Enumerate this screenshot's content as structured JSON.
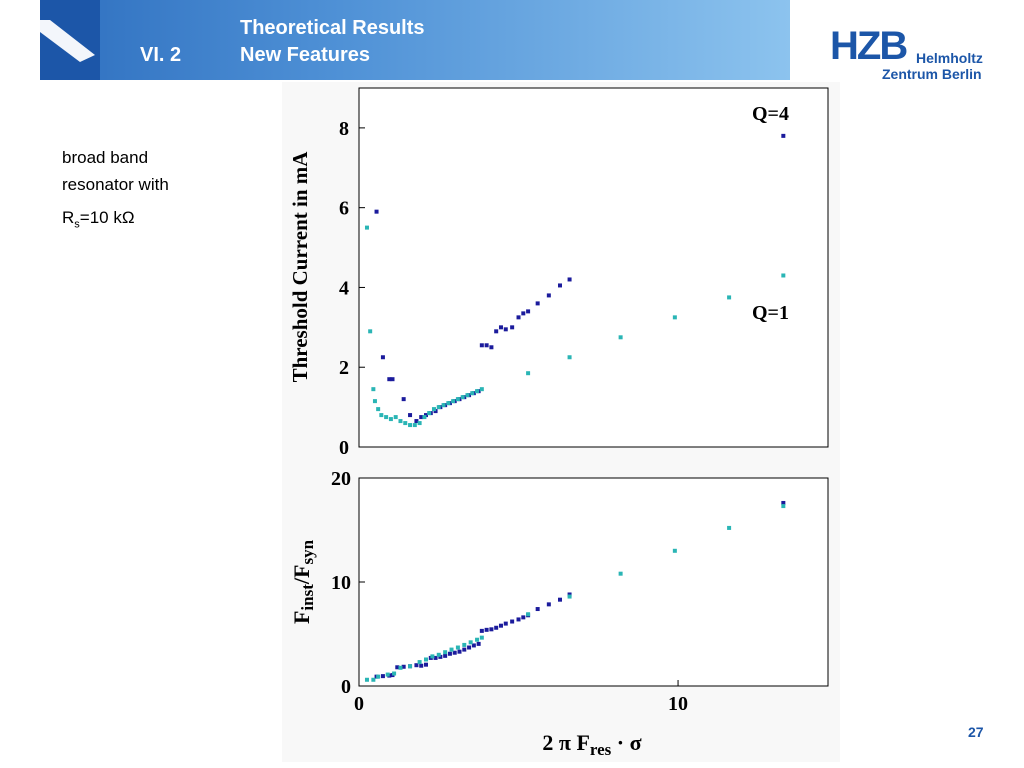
{
  "header": {
    "section": "VI.  2",
    "title_line1": "Theoretical Results",
    "title_line2": "New Features"
  },
  "logo": {
    "mark": "HZB",
    "line1": "Helmholtz",
    "line2": "Zentrum Berlin"
  },
  "side_text": {
    "line1": "broad band",
    "line2": "resonator with",
    "rs_main": "R",
    "rs_sub": "s",
    "rs_rest": "=10 kΩ"
  },
  "page_number": "27",
  "colors": {
    "q4": "#1b1b9c",
    "q1": "#2ab5b5",
    "header_dark": "#1c56a8"
  },
  "chart_data": [
    {
      "type": "scatter",
      "title": "",
      "xlabel": "2 π  F_res · σ",
      "ylabel": "Threshold Current in mA",
      "xlim": [
        0,
        14.7
      ],
      "ylim": [
        0,
        9
      ],
      "y_ticks": [
        "0",
        "2",
        "4",
        "6",
        "8"
      ],
      "annotations": [
        "Q=4",
        "Q=1"
      ],
      "series": [
        {
          "name": "Q=4",
          "points": [
            [
              0.55,
              5.9
            ],
            [
              0.75,
              2.25
            ],
            [
              0.95,
              1.7
            ],
            [
              1.05,
              1.7
            ],
            [
              1.4,
              1.2
            ],
            [
              1.6,
              0.8
            ],
            [
              1.8,
              0.65
            ],
            [
              1.95,
              0.75
            ],
            [
              2.1,
              0.8
            ],
            [
              2.25,
              0.85
            ],
            [
              2.4,
              0.9
            ],
            [
              2.55,
              1.0
            ],
            [
              2.7,
              1.05
            ],
            [
              2.85,
              1.1
            ],
            [
              3.0,
              1.15
            ],
            [
              3.15,
              1.2
            ],
            [
              3.3,
              1.25
            ],
            [
              3.45,
              1.3
            ],
            [
              3.6,
              1.35
            ],
            [
              3.75,
              1.4
            ],
            [
              3.85,
              2.55
            ],
            [
              4.0,
              2.55
            ],
            [
              4.15,
              2.5
            ],
            [
              4.3,
              2.9
            ],
            [
              4.45,
              3.0
            ],
            [
              4.6,
              2.95
            ],
            [
              4.8,
              3.0
            ],
            [
              5.0,
              3.25
            ],
            [
              5.15,
              3.35
            ],
            [
              5.3,
              3.4
            ],
            [
              5.6,
              3.6
            ],
            [
              5.95,
              3.8
            ],
            [
              6.3,
              4.05
            ],
            [
              6.6,
              4.2
            ],
            [
              13.3,
              7.8
            ]
          ]
        },
        {
          "name": "Q=1",
          "points": [
            [
              0.25,
              5.5
            ],
            [
              0.35,
              2.9
            ],
            [
              0.45,
              1.45
            ],
            [
              0.5,
              1.15
            ],
            [
              0.6,
              0.95
            ],
            [
              0.7,
              0.8
            ],
            [
              0.85,
              0.75
            ],
            [
              1.0,
              0.7
            ],
            [
              1.15,
              0.75
            ],
            [
              1.3,
              0.65
            ],
            [
              1.45,
              0.6
            ],
            [
              1.6,
              0.55
            ],
            [
              1.75,
              0.55
            ],
            [
              1.9,
              0.6
            ],
            [
              2.05,
              0.75
            ],
            [
              2.2,
              0.85
            ],
            [
              2.35,
              0.95
            ],
            [
              2.5,
              1.0
            ],
            [
              2.65,
              1.05
            ],
            [
              2.8,
              1.1
            ],
            [
              2.95,
              1.15
            ],
            [
              3.1,
              1.2
            ],
            [
              3.25,
              1.25
            ],
            [
              3.4,
              1.3
            ],
            [
              3.55,
              1.35
            ],
            [
              3.7,
              1.4
            ],
            [
              3.85,
              1.45
            ],
            [
              5.3,
              1.85
            ],
            [
              6.6,
              2.25
            ],
            [
              8.2,
              2.75
            ],
            [
              9.9,
              3.25
            ],
            [
              11.6,
              3.75
            ],
            [
              13.3,
              4.3
            ]
          ]
        }
      ]
    },
    {
      "type": "scatter",
      "title": "",
      "xlabel": "2 π  F_res · σ",
      "ylabel": "F_inst/F_syn",
      "xlim": [
        0,
        14.7
      ],
      "ylim": [
        0,
        20
      ],
      "x_ticks": [
        "0",
        "10"
      ],
      "y_ticks": [
        "0",
        "10",
        "20"
      ],
      "series": [
        {
          "name": "Q=4",
          "points": [
            [
              0.55,
              0.9
            ],
            [
              0.75,
              0.95
            ],
            [
              0.95,
              1.0
            ],
            [
              1.05,
              1.05
            ],
            [
              1.2,
              1.8
            ],
            [
              1.4,
              1.85
            ],
            [
              1.6,
              1.9
            ],
            [
              1.8,
              2.0
            ],
            [
              1.95,
              1.95
            ],
            [
              2.1,
              2.05
            ],
            [
              2.25,
              2.7
            ],
            [
              2.4,
              2.7
            ],
            [
              2.55,
              2.8
            ],
            [
              2.7,
              2.9
            ],
            [
              2.85,
              3.1
            ],
            [
              3.0,
              3.2
            ],
            [
              3.15,
              3.3
            ],
            [
              3.3,
              3.5
            ],
            [
              3.45,
              3.7
            ],
            [
              3.6,
              3.9
            ],
            [
              3.75,
              4.05
            ],
            [
              3.85,
              5.3
            ],
            [
              4.0,
              5.4
            ],
            [
              4.15,
              5.45
            ],
            [
              4.3,
              5.6
            ],
            [
              4.45,
              5.8
            ],
            [
              4.6,
              6.0
            ],
            [
              4.8,
              6.2
            ],
            [
              5.0,
              6.4
            ],
            [
              5.15,
              6.6
            ],
            [
              5.3,
              6.8
            ],
            [
              5.6,
              7.4
            ],
            [
              5.95,
              7.85
            ],
            [
              6.3,
              8.3
            ],
            [
              6.6,
              8.8
            ],
            [
              13.3,
              17.6
            ]
          ]
        },
        {
          "name": "Q=1",
          "points": [
            [
              0.25,
              0.6
            ],
            [
              0.45,
              0.6
            ],
            [
              0.6,
              0.9
            ],
            [
              0.9,
              1.1
            ],
            [
              1.1,
              1.2
            ],
            [
              1.3,
              1.75
            ],
            [
              1.6,
              1.9
            ],
            [
              1.9,
              2.3
            ],
            [
              2.1,
              2.55
            ],
            [
              2.3,
              2.85
            ],
            [
              2.5,
              3.0
            ],
            [
              2.7,
              3.25
            ],
            [
              2.9,
              3.5
            ],
            [
              3.1,
              3.7
            ],
            [
              3.3,
              3.95
            ],
            [
              3.5,
              4.2
            ],
            [
              3.7,
              4.45
            ],
            [
              3.85,
              4.65
            ],
            [
              5.3,
              6.9
            ],
            [
              6.6,
              8.6
            ],
            [
              8.2,
              10.8
            ],
            [
              9.9,
              13.0
            ],
            [
              11.6,
              15.2
            ],
            [
              13.3,
              17.3
            ]
          ]
        }
      ]
    }
  ]
}
